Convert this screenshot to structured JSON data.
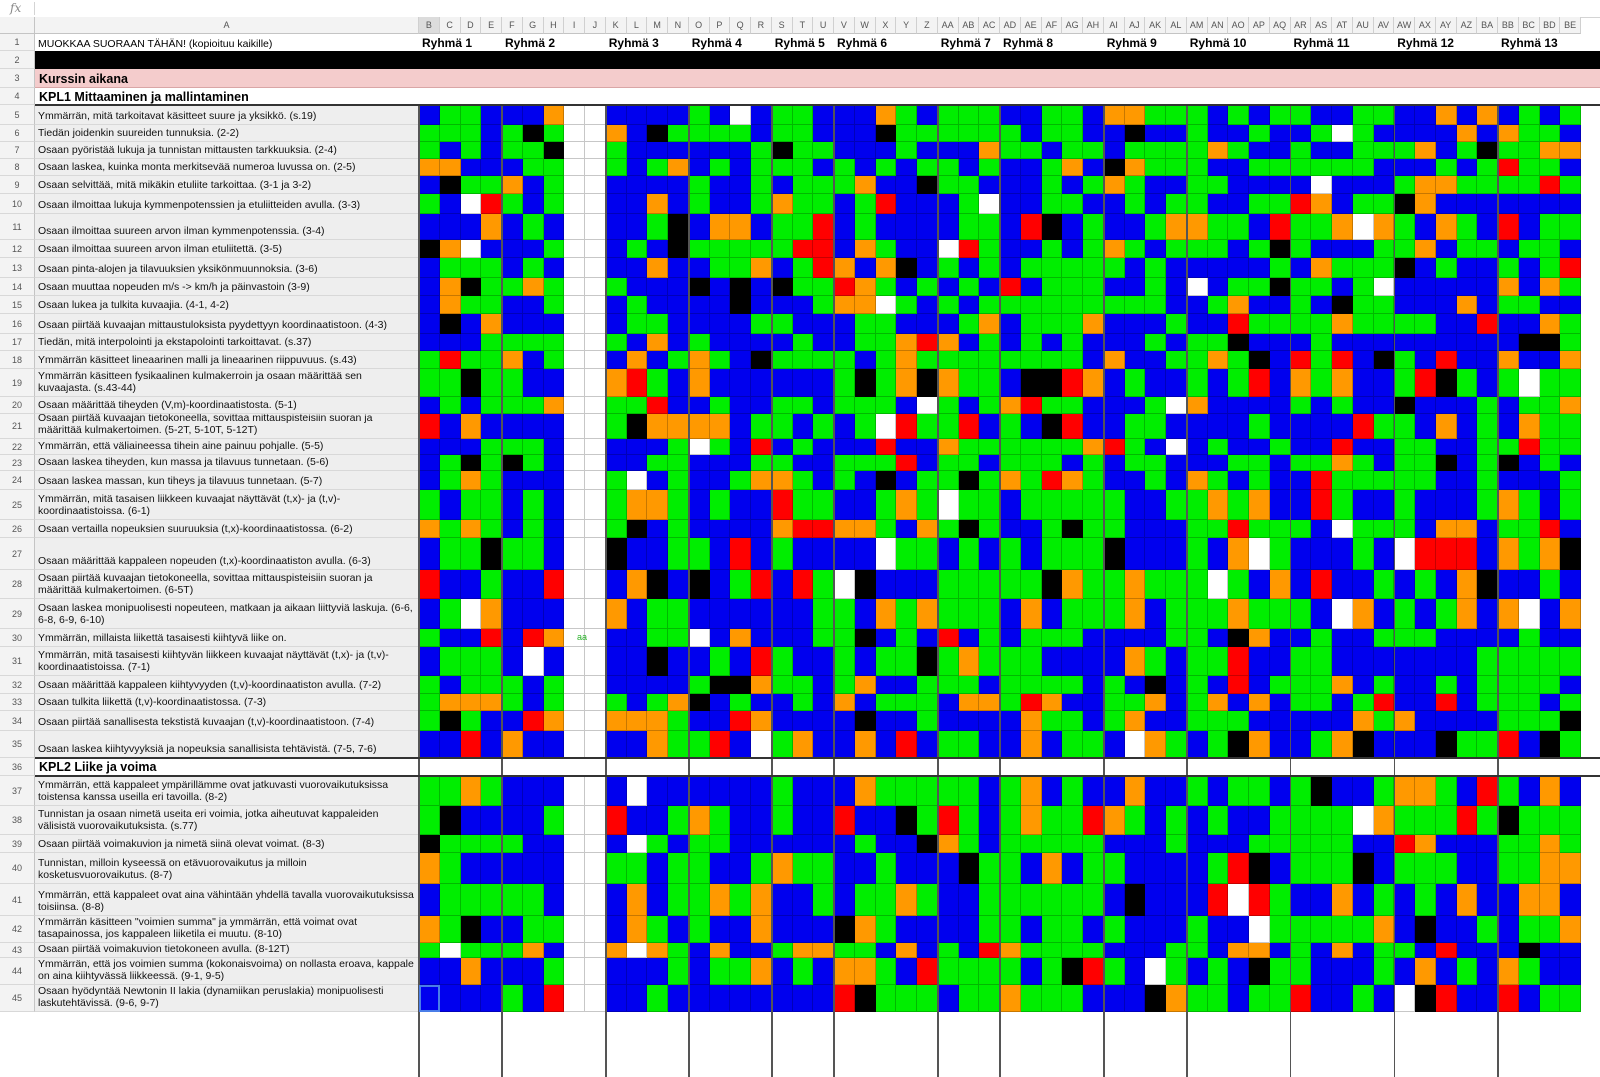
{
  "formula_bar": {
    "fx_label": "fx"
  },
  "columns": [
    "A",
    "B",
    "C",
    "D",
    "E",
    "F",
    "G",
    "H",
    "I",
    "J",
    "K",
    "L",
    "M",
    "N",
    "O",
    "P",
    "Q",
    "R",
    "S",
    "T",
    "U",
    "V",
    "W",
    "X",
    "Y",
    "Z",
    "AA",
    "AB",
    "AC",
    "AD",
    "AE",
    "AF",
    "AG",
    "AH",
    "AI",
    "AJ",
    "AK",
    "AL",
    "AM",
    "AN",
    "AO",
    "AP",
    "AQ",
    "AR",
    "AS",
    "AT",
    "AU",
    "AV",
    "AW",
    "AX",
    "AY",
    "AZ",
    "BA",
    "BB",
    "BC",
    "BD",
    "BE"
  ],
  "header_row": {
    "a1": "MUOKKAA SUORAAN TÄHÄN! (kopioituu kaikille)",
    "groups": [
      {
        "label": "Ryhmä 1",
        "col": "B"
      },
      {
        "label": "Ryhmä 2",
        "col": "F"
      },
      {
        "label": "Ryhmä 3",
        "col": "K"
      },
      {
        "label": "Ryhmä 4",
        "col": "O"
      },
      {
        "label": "Ryhmä 5",
        "col": "S"
      },
      {
        "label": "Ryhmä 6",
        "col": "V"
      },
      {
        "label": "Ryhmä 7",
        "col": "AA"
      },
      {
        "label": "Ryhmä 8",
        "col": "AD"
      },
      {
        "label": "Ryhmä 9",
        "col": "AI"
      },
      {
        "label": "Ryhmä 10",
        "col": "AM"
      },
      {
        "label": "Ryhmä 11",
        "col": "AR"
      },
      {
        "label": "Ryhmä 12",
        "col": "AW"
      },
      {
        "label": "Ryhmä 13",
        "col": "BB"
      }
    ]
  },
  "section_during": "Kurssin aikana",
  "chapter1": "KPL1 Mittaaminen ja mallintaminen",
  "chapter2": "KPL2 Liike ja voima",
  "rows": [
    {
      "num": "1"
    },
    {
      "num": "2"
    },
    {
      "num": "3"
    },
    {
      "num": "4"
    },
    {
      "num": "5",
      "text": "Ymmärrän, mitä tarkoitavat käsitteet suure ja yksikkö. (s.19)"
    },
    {
      "num": "6",
      "text": "Tiedän joidenkin suureiden tunnuksia. (2-2)"
    },
    {
      "num": "7",
      "text": "Osaan pyöristää lukuja ja tunnistan mittausten tarkkuuksia. (2-4)"
    },
    {
      "num": "8",
      "text": "Osaan laskea, kuinka monta merkitsevää numeroa luvussa on. (2-5)"
    },
    {
      "num": "9",
      "text": "Osaan selvittää, mitä mikäkin etuliite tarkoittaa. (3-1 ja 3-2)"
    },
    {
      "num": "10",
      "text": "Osaan ilmoittaa lukuja kymmenpotenssien ja etuliitteiden avulla. (3-3)"
    },
    {
      "num": "11",
      "text": "Osaan ilmoittaa suureen arvon ilman kymmenpotenssia. (3-4)"
    },
    {
      "num": "12",
      "text": "Osaan ilmoittaa suureen arvon ilman etuliitettä. (3-5)"
    },
    {
      "num": "13",
      "text": "Osaan pinta-alojen ja tilavuuksien yksikönmuunnoksia. (3-6)"
    },
    {
      "num": "14",
      "text": "Osaan muuttaa nopeuden m/s -> km/h ja päinvastoin (3-9)"
    },
    {
      "num": "15",
      "text": "Osaan lukea ja tulkita kuvaajia. (4-1, 4-2)"
    },
    {
      "num": "16",
      "text": "Osaan piirtää kuvaajan mittaustuloksista pyydettyyn koordinaatistoon. (4-3)"
    },
    {
      "num": "17",
      "text": "Tiedän, mitä interpolointi ja ekstapolointi tarkoittavat. (s.37)"
    },
    {
      "num": "18",
      "text": "Ymmärrän käsitteet lineaarinen malli ja lineaarinen riippuvuus. (s.43)"
    },
    {
      "num": "19",
      "text": "Ymmärrän käsitteen fysikaalinen kulmakerroin ja osaan määrittää sen kuvaajasta. (s.43-44)"
    },
    {
      "num": "20",
      "text": "Osaan määrittää tiheyden (V,m)-koordinaatistosta. (5-1)"
    },
    {
      "num": "21",
      "text": "Osaan piirtää kuvaajan tietokoneella, sovittaa mittauspisteisiin suoran ja määrittää kulmakertoimen. (5-2T, 5-10T, 5-12T)"
    },
    {
      "num": "22",
      "text": "Ymmärrän, että väliaineessa tihein aine painuu pohjalle. (5-5)"
    },
    {
      "num": "23",
      "text": "Osaan laskea tiheyden, kun massa ja tilavuus tunnetaan. (5-6)"
    },
    {
      "num": "24",
      "text": "Osaan laskea massan, kun tiheys ja tilavuus tunnetaan. (5-7)"
    },
    {
      "num": "25",
      "text": "Ymmärrän, mitä tasaisen liikkeen kuvaajat näyttävät (t,x)- ja (t,v)-koordinaatistoissa. (6-1)"
    },
    {
      "num": "26",
      "text": "Osaan vertailla nopeuksien suuruuksia (t,x)-koordinaatistossa. (6-2)"
    },
    {
      "num": "27",
      "text": "Osaan määrittää kappaleen nopeuden (t,x)-koordinaatiston avulla. (6-3)"
    },
    {
      "num": "28",
      "text": "Osaan piirtää kuvaajan tietokoneella, sovittaa mittauspisteisiin suoran ja määrittää kulmakertoimen. (6-5T)"
    },
    {
      "num": "29",
      "text": "Osaan laskea monipuolisesti nopeuteen, matkaan ja aikaan liittyviä laskuja. (6-6, 6-8, 6-9, 6-10)"
    },
    {
      "num": "30",
      "text": "Ymmärrän, millaista liikettä tasaisesti kiihtyvä liike on."
    },
    {
      "num": "31",
      "text": "Ymmärrän, mitä tasaisesti kiihtyvän liikkeen kuvaajat näyttävät (t,x)- ja (t,v)-koordinaatistoissa. (7-1)"
    },
    {
      "num": "32",
      "text": "Osaan määrittää kappaleen kiihtyvyyden (t,v)-koordinaatiston avulla. (7-2)"
    },
    {
      "num": "33",
      "text": "Osaan tulkita liikettä (t,v)-koordinaatistossa. (7-3)"
    },
    {
      "num": "34",
      "text": "Osaan piirtää sanallisesta tekstistä kuvaajan (t,v)-koordinaatistoon. (7-4)"
    },
    {
      "num": "35",
      "text": "Osaan laskea kiihtyvyyksiä ja nopeuksia sanallisista tehtävistä. (7-5, 7-6)"
    },
    {
      "num": "36"
    },
    {
      "num": "37",
      "text": "Ymmärrän, että kappaleet ympärillämme ovat jatkuvasti vuorovaikutuksissa toistensa kanssa useilla eri tavoilla. (8-2)"
    },
    {
      "num": "38",
      "text": "Tunnistan ja osaan nimetä useita eri voimia, jotka aiheutuvat kappaleiden välisistä vuorovaikutuksista. (s.77)"
    },
    {
      "num": "39",
      "text": "Osaan piirtää voimakuvion ja nimetä siinä olevat voimat. (8-3)"
    },
    {
      "num": "40",
      "text": "Tunnistan, milloin kyseessä on etävuorovaikutus ja milloin kosketusvuorovaikutus. (8-7)"
    },
    {
      "num": "41",
      "text": "Ymmärrän, että kappaleet ovat aina vähintään yhdellä tavalla vuorovaikutuksissa toisiinsa. (8-8)"
    },
    {
      "num": "42",
      "text": "Ymmärrän käsitteen \"voimien summa\" ja ymmärrän, että voimat ovat tasapainossa, jos kappaleen liiketila ei muutu. (8-10)"
    },
    {
      "num": "43",
      "text": "Osaan piirtää voimakuvion tietokoneen avulla. (8-12T)"
    },
    {
      "num": "44",
      "text": "Ymmärrän, että jos voimien summa (kokonaisvoima) on nollasta eroava, kappale on aina kiihtyvässä liikkeessä. (9-1, 9-5)"
    },
    {
      "num": "45",
      "text": "Osaan hyödyntää Newtonin II lakia (dynamiikan peruslakia) monipuolisesti laskutehtävissä. (9-6, 9-7)"
    }
  ],
  "stray_text": "aa",
  "colors": {
    "green": "#00ee00",
    "blue": "#0000ee",
    "orange": "#ff9900",
    "red": "#ff0000",
    "black": "#000000",
    "white": "#ffffff",
    "section_pink": "#f4cccc",
    "header_black": "#000000",
    "group_divider": "#555555"
  }
}
